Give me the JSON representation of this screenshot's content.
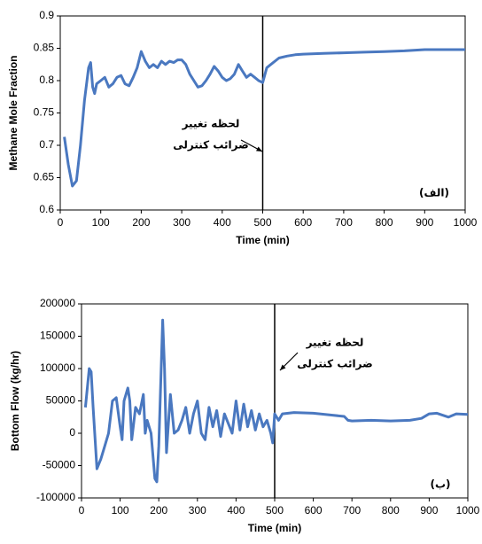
{
  "chart_data": [
    {
      "type": "line",
      "x_label": "Time (min)",
      "y_label": "Methane Mole Fraction",
      "annotation": [
        "لحظه تغییر",
        "ضرائب کنترلی"
      ],
      "panel_label": "(الف)",
      "vertical_line": 500,
      "xlim": [
        0,
        1000
      ],
      "xticks": [
        0,
        100,
        200,
        300,
        400,
        500,
        600,
        700,
        800,
        900,
        1000
      ],
      "ylim": [
        0.6,
        0.9
      ],
      "yticks": [
        0.6,
        0.65,
        0.7,
        0.75,
        0.8,
        0.85,
        0.9
      ],
      "series": [
        {
          "name": null,
          "color": "#4a78c0",
          "x": [
            10,
            20,
            30,
            40,
            50,
            60,
            70,
            75,
            80,
            85,
            90,
            100,
            110,
            120,
            130,
            140,
            150,
            160,
            170,
            180,
            190,
            200,
            210,
            220,
            230,
            240,
            250,
            260,
            270,
            280,
            290,
            300,
            310,
            320,
            330,
            340,
            350,
            360,
            370,
            380,
            390,
            400,
            410,
            420,
            430,
            440,
            450,
            460,
            470,
            480,
            490,
            500,
            510,
            520,
            540,
            560,
            580,
            600,
            650,
            700,
            750,
            800,
            850,
            900,
            950,
            1000
          ],
          "values": [
            0.713,
            0.67,
            0.637,
            0.645,
            0.7,
            0.77,
            0.82,
            0.828,
            0.79,
            0.78,
            0.795,
            0.8,
            0.805,
            0.79,
            0.795,
            0.805,
            0.808,
            0.795,
            0.792,
            0.805,
            0.82,
            0.845,
            0.83,
            0.82,
            0.825,
            0.82,
            0.83,
            0.825,
            0.83,
            0.828,
            0.832,
            0.832,
            0.825,
            0.81,
            0.8,
            0.79,
            0.792,
            0.8,
            0.81,
            0.822,
            0.815,
            0.805,
            0.8,
            0.803,
            0.81,
            0.825,
            0.815,
            0.805,
            0.81,
            0.805,
            0.8,
            0.797,
            0.82,
            0.825,
            0.835,
            0.838,
            0.84,
            0.841,
            0.842,
            0.843,
            0.844,
            0.845,
            0.846,
            0.848,
            0.848,
            0.848
          ]
        }
      ]
    },
    {
      "type": "line",
      "x_label": "Time (min)",
      "y_label": "Bottom Flow (kg/hr)",
      "annotation": [
        "لحظه تغییر",
        "ضرائب کنترلی"
      ],
      "panel_label": "(ب)",
      "vertical_line": 500,
      "xlim": [
        0,
        1000
      ],
      "xticks": [
        0,
        100,
        200,
        300,
        400,
        500,
        600,
        700,
        800,
        900,
        1000
      ],
      "ylim": [
        -100000,
        200000
      ],
      "yticks": [
        -100000,
        -50000,
        0,
        50000,
        100000,
        150000,
        200000
      ],
      "series": [
        {
          "name": null,
          "color": "#4a78c0",
          "x": [
            10,
            20,
            25,
            30,
            40,
            50,
            60,
            70,
            80,
            90,
            100,
            105,
            110,
            120,
            125,
            130,
            140,
            150,
            160,
            165,
            170,
            180,
            190,
            195,
            200,
            210,
            215,
            220,
            230,
            240,
            250,
            260,
            270,
            280,
            290,
            300,
            310,
            320,
            330,
            340,
            350,
            360,
            370,
            380,
            390,
            400,
            410,
            420,
            430,
            440,
            450,
            460,
            470,
            480,
            490,
            495,
            500,
            510,
            520,
            550,
            600,
            650,
            680,
            690,
            700,
            750,
            800,
            850,
            880,
            900,
            920,
            950,
            970,
            1000
          ],
          "values": [
            40000,
            100000,
            95000,
            40000,
            -55000,
            -40000,
            -20000,
            0,
            50000,
            55000,
            10000,
            -10000,
            50000,
            70000,
            50000,
            -10000,
            40000,
            30000,
            60000,
            0,
            20000,
            0,
            -70000,
            -75000,
            -20000,
            175000,
            100000,
            -30000,
            60000,
            0,
            5000,
            20000,
            40000,
            0,
            30000,
            50000,
            0,
            -10000,
            40000,
            10000,
            35000,
            -5000,
            30000,
            15000,
            0,
            50000,
            5000,
            45000,
            10000,
            35000,
            5000,
            30000,
            10000,
            20000,
            0,
            -15000,
            30000,
            20000,
            30000,
            32000,
            31000,
            28000,
            26000,
            20000,
            19000,
            20000,
            19000,
            20000,
            23000,
            30000,
            31000,
            25000,
            30000,
            29000
          ]
        }
      ]
    }
  ]
}
